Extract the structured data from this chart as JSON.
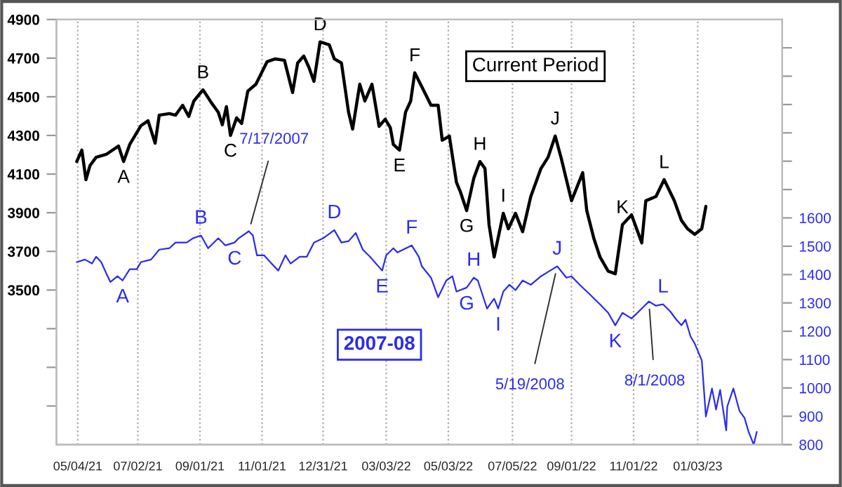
{
  "chart_data": {
    "type": "line",
    "xlim": [
      "2021-04-13",
      "2023-03-27"
    ],
    "xticks": [
      {
        "value": "2021-05-04",
        "label": "05/04/21"
      },
      {
        "value": "2021-07-02",
        "label": "07/02/21"
      },
      {
        "value": "2021-09-01",
        "label": "09/01/21"
      },
      {
        "value": "2021-11-01",
        "label": "11/01/21"
      },
      {
        "value": "2021-12-31",
        "label": "12/31/21"
      },
      {
        "value": "2022-03-03",
        "label": "03/03/22"
      },
      {
        "value": "2022-05-03",
        "label": "05/03/22"
      },
      {
        "value": "2022-07-05",
        "label": "07/05/22"
      },
      {
        "value": "2022-09-01",
        "label": "09/01/22"
      },
      {
        "value": "2022-11-01",
        "label": "11/01/22"
      },
      {
        "value": "2023-01-03",
        "label": "01/03/23"
      }
    ],
    "ylim": [
      2700,
      4900
    ],
    "yticks": [
      {
        "value": 2900,
        "label": null
      },
      {
        "value": 3100,
        "label": null
      },
      {
        "value": 3300,
        "label": null
      },
      3500,
      3700,
      3900,
      4100,
      4300,
      4500,
      4700,
      4900
    ],
    "y2lim": [
      800,
      2300
    ],
    "y2ticks": [
      800,
      900,
      1000,
      1100,
      1200,
      1300,
      1400,
      1500,
      1600,
      {
        "value": 1700,
        "label": null
      },
      {
        "value": 1800,
        "label": null
      },
      {
        "value": 1900,
        "label": null
      },
      {
        "value": 2000,
        "label": null
      },
      {
        "value": 2100,
        "label": null
      },
      {
        "value": 2200,
        "label": null
      }
    ],
    "grid": "x",
    "series": [
      {
        "name": "Current Period",
        "color": "#000000",
        "x": [
          "2021-05-03",
          "2021-05-08",
          "2021-05-12",
          "2021-05-16",
          "2021-05-22",
          "2021-06-01",
          "2021-06-13",
          "2021-06-18",
          "2021-06-24",
          "2021-07-05",
          "2021-07-12",
          "2021-07-19",
          "2021-07-23",
          "2021-08-02",
          "2021-08-08",
          "2021-08-15",
          "2021-08-21",
          "2021-08-26",
          "2021-09-04",
          "2021-09-12",
          "2021-09-19",
          "2021-09-23",
          "2021-09-27",
          "2021-10-01",
          "2021-10-07",
          "2021-10-12",
          "2021-10-18",
          "2021-10-26",
          "2021-11-06",
          "2021-11-14",
          "2021-11-23",
          "2021-12-01",
          "2021-12-06",
          "2021-12-12",
          "2021-12-17",
          "2021-12-22",
          "2021-12-28",
          "2022-01-06",
          "2022-01-11",
          "2022-01-18",
          "2022-01-25",
          "2022-01-29",
          "2022-02-05",
          "2022-02-10",
          "2022-02-17",
          "2022-02-24",
          "2022-03-02",
          "2022-03-07",
          "2022-03-10",
          "2022-03-16",
          "2022-03-22",
          "2022-03-27",
          "2022-03-31",
          "2022-04-07",
          "2022-04-16",
          "2022-04-23",
          "2022-04-27",
          "2022-05-04",
          "2022-05-11",
          "2022-05-15",
          "2022-05-21",
          "2022-05-28",
          "2022-06-03",
          "2022-06-08",
          "2022-06-12",
          "2022-06-17",
          "2022-06-26",
          "2022-07-01",
          "2022-07-08",
          "2022-07-15",
          "2022-07-23",
          "2022-08-02",
          "2022-08-09",
          "2022-08-16",
          "2022-08-22",
          "2022-09-01",
          "2022-09-12",
          "2022-09-16",
          "2022-09-23",
          "2022-09-29",
          "2022-10-07",
          "2022-10-14",
          "2022-10-21",
          "2022-10-30",
          "2022-11-09",
          "2022-11-13",
          "2022-11-23",
          "2022-12-01",
          "2022-12-11",
          "2022-12-18",
          "2022-12-24",
          "2022-12-31",
          "2023-01-07",
          "2023-01-11"
        ],
        "values": [
          4165,
          4224,
          4071,
          4144,
          4187,
          4202,
          4245,
          4165,
          4253,
          4350,
          4376,
          4260,
          4405,
          4413,
          4405,
          4456,
          4398,
          4478,
          4536,
          4471,
          4420,
          4355,
          4449,
          4300,
          4391,
          4362,
          4529,
          4565,
          4682,
          4696,
          4689,
          4522,
          4675,
          4711,
          4653,
          4580,
          4784,
          4769,
          4696,
          4675,
          4420,
          4333,
          4565,
          4478,
          4565,
          4347,
          4384,
          4340,
          4253,
          4224,
          4420,
          4478,
          4624,
          4551,
          4456,
          4456,
          4275,
          4297,
          4057,
          4006,
          3911,
          4078,
          4165,
          4129,
          3838,
          3671,
          3897,
          3817,
          3897,
          3802,
          3984,
          4129,
          4187,
          4297,
          4180,
          3962,
          4107,
          3911,
          3766,
          3671,
          3598,
          3584,
          3838,
          3889,
          3744,
          3962,
          3984,
          4071,
          3962,
          3860,
          3817,
          3788,
          3817,
          3933
        ],
        "value_labels": [
          null,
          null,
          null,
          null,
          null,
          null,
          null,
          "A",
          null,
          null,
          null,
          null,
          null,
          null,
          null,
          null,
          null,
          null,
          "B",
          null,
          null,
          null,
          null,
          "C",
          null,
          null,
          null,
          null,
          null,
          null,
          null,
          null,
          null,
          null,
          null,
          null,
          "D",
          null,
          null,
          null,
          null,
          null,
          null,
          null,
          null,
          null,
          null,
          null,
          null,
          "E",
          null,
          null,
          "F",
          null,
          null,
          null,
          null,
          null,
          null,
          null,
          "G",
          null,
          "H",
          null,
          null,
          null,
          "I",
          null,
          null,
          null,
          null,
          null,
          null,
          "J",
          null,
          null,
          null,
          null,
          null,
          null,
          null,
          null,
          "K",
          null,
          null,
          null,
          null,
          "L",
          null,
          null,
          null,
          null,
          null,
          null
        ]
      },
      {
        "name": "2007-08",
        "color": "#2b2bf0",
        "axis": "y2",
        "x": [
          "2021-05-03",
          "2021-05-11",
          "2021-05-18",
          "2021-05-22",
          "2021-05-27",
          "2021-06-01",
          "2021-06-05",
          "2021-06-12",
          "2021-06-17",
          "2021-06-24",
          "2021-07-01",
          "2021-07-05",
          "2021-07-15",
          "2021-07-23",
          "2021-08-02",
          "2021-08-08",
          "2021-08-19",
          "2021-08-25",
          "2021-09-02",
          "2021-09-09",
          "2021-09-19",
          "2021-09-26",
          "2021-10-05",
          "2021-10-09",
          "2021-10-19",
          "2021-10-23",
          "2021-10-27",
          "2021-11-03",
          "2021-11-09",
          "2021-11-17",
          "2021-11-24",
          "2021-11-29",
          "2021-12-08",
          "2021-12-15",
          "2021-12-22",
          "2021-12-31",
          "2022-01-11",
          "2022-01-18",
          "2022-01-25",
          "2022-02-01",
          "2022-02-08",
          "2022-02-15",
          "2022-02-27",
          "2022-03-03",
          "2022-03-10",
          "2022-03-14",
          "2022-03-28",
          "2022-04-04",
          "2022-04-07",
          "2022-04-16",
          "2022-04-23",
          "2022-05-01",
          "2022-05-07",
          "2022-05-11",
          "2022-05-21",
          "2022-05-28",
          "2022-06-01",
          "2022-06-10",
          "2022-06-17",
          "2022-06-21",
          "2022-06-26",
          "2022-07-02",
          "2022-07-08",
          "2022-07-15",
          "2022-07-23",
          "2022-08-02",
          "2022-08-11",
          "2022-08-18",
          "2022-08-27",
          "2022-09-01",
          "2022-09-09",
          "2022-09-19",
          "2022-09-29",
          "2022-10-07",
          "2022-10-14",
          "2022-10-21",
          "2022-10-30",
          "2022-11-09",
          "2022-11-16",
          "2022-11-23",
          "2022-11-30",
          "2022-12-07",
          "2022-12-13",
          "2022-12-18",
          "2022-12-22",
          "2022-12-27",
          "2022-12-31",
          "2023-01-07",
          "2023-01-11",
          "2023-01-17",
          "2023-01-21",
          "2023-01-25",
          "2023-01-31",
          "2023-02-01",
          "2023-02-07",
          "2023-02-13",
          "2023-02-18",
          "2023-02-22",
          "2023-02-27",
          "2023-03-02"
        ],
        "values": [
          1444,
          1453,
          1439,
          1463,
          1444,
          1404,
          1374,
          1394,
          1379,
          1419,
          1419,
          1444,
          1453,
          1488,
          1493,
          1513,
          1513,
          1528,
          1538,
          1493,
          1528,
          1503,
          1513,
          1528,
          1553,
          1538,
          1468,
          1468,
          1444,
          1414,
          1468,
          1439,
          1463,
          1463,
          1513,
          1528,
          1557,
          1513,
          1518,
          1547,
          1488,
          1463,
          1414,
          1468,
          1493,
          1478,
          1503,
          1463,
          1429,
          1389,
          1320,
          1379,
          1394,
          1340,
          1354,
          1389,
          1379,
          1280,
          1315,
          1280,
          1340,
          1364,
          1345,
          1379,
          1364,
          1394,
          1414,
          1429,
          1389,
          1394,
          1364,
          1330,
          1295,
          1265,
          1221,
          1265,
          1245,
          1280,
          1305,
          1290,
          1295,
          1270,
          1241,
          1221,
          1241,
          1181,
          1157,
          1097,
          899,
          998,
          924,
          993,
          850,
          934,
          998,
          919,
          894,
          845,
          800,
          845
        ],
        "value_labels": [
          null,
          null,
          null,
          null,
          null,
          null,
          null,
          null,
          "A",
          null,
          null,
          null,
          null,
          null,
          null,
          null,
          null,
          null,
          "B",
          null,
          null,
          null,
          "C",
          null,
          null,
          null,
          null,
          null,
          null,
          null,
          null,
          null,
          null,
          null,
          null,
          null,
          "D",
          null,
          null,
          null,
          null,
          null,
          "E",
          null,
          null,
          null,
          "F",
          null,
          null,
          null,
          null,
          null,
          null,
          null,
          "G",
          "H",
          null,
          null,
          null,
          "I",
          null,
          null,
          null,
          null,
          null,
          null,
          null,
          "J",
          null,
          null,
          null,
          null,
          null,
          null,
          "K",
          null,
          null,
          null,
          null,
          null,
          "L",
          null,
          null,
          null,
          null,
          null,
          null,
          null,
          null,
          null,
          null,
          null,
          null,
          null,
          null,
          null,
          null,
          null,
          null,
          null
        ]
      }
    ],
    "annotations": [
      {
        "text": "7/17/2007",
        "x": "2021-10-19",
        "y": 3804
      },
      {
        "text": "5/19/2008",
        "x": "2022-08-18",
        "y": 3623
      },
      {
        "text": "8/1/2008",
        "x": "2022-11-16",
        "y": 3441
      }
    ]
  }
}
